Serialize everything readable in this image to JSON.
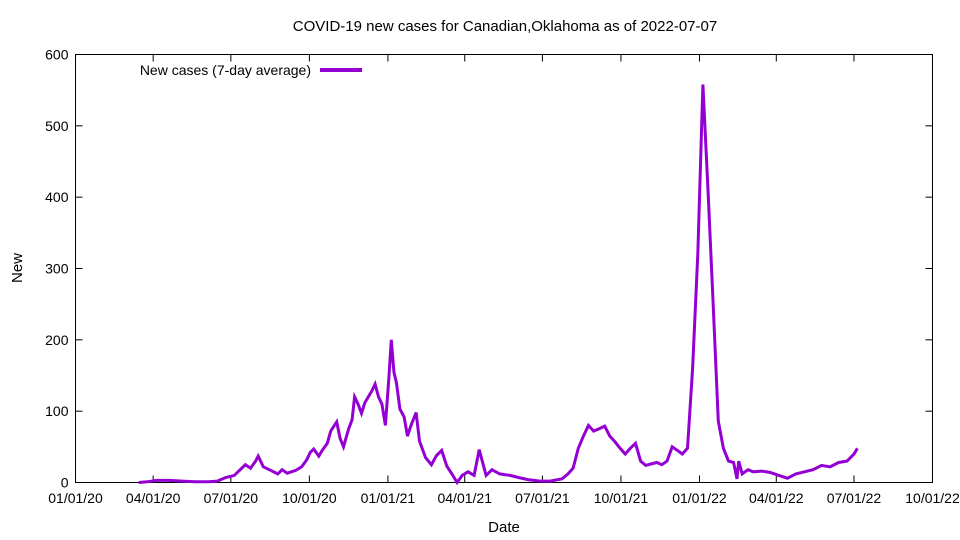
{
  "chart_data": {
    "type": "line",
    "title": "COVID-19 new cases for Canadian,Oklahoma as of 2022-07-07",
    "xlabel": "Date",
    "ylabel": "New",
    "x_range": [
      "2020-01-01",
      "2022-10-01"
    ],
    "ylim": [
      0,
      600
    ],
    "y_ticks": [
      0,
      100,
      200,
      300,
      400,
      500,
      600
    ],
    "x_ticks": [
      "2020-01-01",
      "2020-04-01",
      "2020-07-01",
      "2020-10-01",
      "2021-01-01",
      "2021-04-01",
      "2021-07-01",
      "2021-10-01",
      "2022-01-01",
      "2022-04-01",
      "2022-07-01",
      "2022-10-01"
    ],
    "x_tick_labels": [
      "01/01/20",
      "04/01/20",
      "07/01/20",
      "10/01/20",
      "01/01/21",
      "04/01/21",
      "07/01/21",
      "10/01/21",
      "01/01/22",
      "04/01/22",
      "07/01/22",
      "10/01/22"
    ],
    "grid": false,
    "legend_position": "top-left",
    "series": [
      {
        "name": "New cases (7-day average)",
        "color": "#9400d3",
        "points": [
          [
            "2020-03-15",
            0
          ],
          [
            "2020-03-25",
            1
          ],
          [
            "2020-04-05",
            3
          ],
          [
            "2020-04-20",
            3
          ],
          [
            "2020-05-05",
            2
          ],
          [
            "2020-05-20",
            1
          ],
          [
            "2020-06-05",
            1
          ],
          [
            "2020-06-15",
            2
          ],
          [
            "2020-06-25",
            7
          ],
          [
            "2020-07-05",
            10
          ],
          [
            "2020-07-12",
            18
          ],
          [
            "2020-07-18",
            25
          ],
          [
            "2020-07-24",
            20
          ],
          [
            "2020-07-30",
            30
          ],
          [
            "2020-08-02",
            37
          ],
          [
            "2020-08-08",
            22
          ],
          [
            "2020-08-15",
            18
          ],
          [
            "2020-08-25",
            12
          ],
          [
            "2020-08-30",
            18
          ],
          [
            "2020-09-05",
            13
          ],
          [
            "2020-09-15",
            17
          ],
          [
            "2020-09-22",
            22
          ],
          [
            "2020-09-28",
            32
          ],
          [
            "2020-10-02",
            42
          ],
          [
            "2020-10-06",
            47
          ],
          [
            "2020-10-12",
            37
          ],
          [
            "2020-10-16",
            45
          ],
          [
            "2020-10-22",
            55
          ],
          [
            "2020-10-26",
            72
          ],
          [
            "2020-11-02",
            85
          ],
          [
            "2020-11-06",
            62
          ],
          [
            "2020-11-10",
            50
          ],
          [
            "2020-11-16",
            75
          ],
          [
            "2020-11-20",
            88
          ],
          [
            "2020-11-23",
            120
          ],
          [
            "2020-11-27",
            110
          ],
          [
            "2020-12-01",
            97
          ],
          [
            "2020-12-05",
            112
          ],
          [
            "2020-12-09",
            120
          ],
          [
            "2020-12-13",
            128
          ],
          [
            "2020-12-17",
            138
          ],
          [
            "2020-12-21",
            120
          ],
          [
            "2020-12-25",
            110
          ],
          [
            "2020-12-29",
            80
          ],
          [
            "2021-01-02",
            145
          ],
          [
            "2021-01-05",
            200
          ],
          [
            "2021-01-08",
            155
          ],
          [
            "2021-01-11",
            140
          ],
          [
            "2021-01-15",
            103
          ],
          [
            "2021-01-20",
            92
          ],
          [
            "2021-01-24",
            65
          ],
          [
            "2021-01-28",
            80
          ],
          [
            "2021-02-03",
            98
          ],
          [
            "2021-02-07",
            58
          ],
          [
            "2021-02-14",
            35
          ],
          [
            "2021-02-21",
            25
          ],
          [
            "2021-02-27",
            38
          ],
          [
            "2021-03-05",
            45
          ],
          [
            "2021-03-11",
            23
          ],
          [
            "2021-03-17",
            12
          ],
          [
            "2021-03-23",
            0
          ],
          [
            "2021-03-29",
            10
          ],
          [
            "2021-04-05",
            15
          ],
          [
            "2021-04-12",
            10
          ],
          [
            "2021-04-18",
            46
          ],
          [
            "2021-04-26",
            10
          ],
          [
            "2021-05-03",
            18
          ],
          [
            "2021-05-12",
            12
          ],
          [
            "2021-05-24",
            10
          ],
          [
            "2021-06-03",
            7
          ],
          [
            "2021-06-14",
            4
          ],
          [
            "2021-06-28",
            2
          ],
          [
            "2021-07-10",
            2
          ],
          [
            "2021-07-24",
            5
          ],
          [
            "2021-07-31",
            12
          ],
          [
            "2021-08-06",
            20
          ],
          [
            "2021-08-12",
            48
          ],
          [
            "2021-08-18",
            65
          ],
          [
            "2021-08-24",
            80
          ],
          [
            "2021-08-30",
            72
          ],
          [
            "2021-09-05",
            75
          ],
          [
            "2021-09-12",
            79
          ],
          [
            "2021-09-18",
            65
          ],
          [
            "2021-09-24",
            57
          ],
          [
            "2021-09-30",
            48
          ],
          [
            "2021-10-06",
            40
          ],
          [
            "2021-10-12",
            48
          ],
          [
            "2021-10-18",
            55
          ],
          [
            "2021-10-24",
            30
          ],
          [
            "2021-10-30",
            24
          ],
          [
            "2021-11-05",
            26
          ],
          [
            "2021-11-12",
            28
          ],
          [
            "2021-11-18",
            25
          ],
          [
            "2021-11-24",
            30
          ],
          [
            "2021-11-30",
            50
          ],
          [
            "2021-12-06",
            45
          ],
          [
            "2021-12-12",
            40
          ],
          [
            "2021-12-18",
            48
          ],
          [
            "2021-12-24",
            160
          ],
          [
            "2021-12-30",
            320
          ],
          [
            "2022-01-05",
            558
          ],
          [
            "2022-01-11",
            410
          ],
          [
            "2022-01-17",
            252
          ],
          [
            "2022-01-23",
            86
          ],
          [
            "2022-01-29",
            48
          ],
          [
            "2022-02-04",
            30
          ],
          [
            "2022-02-10",
            28
          ],
          [
            "2022-02-14",
            5
          ],
          [
            "2022-02-16",
            30
          ],
          [
            "2022-02-20",
            12
          ],
          [
            "2022-02-27",
            18
          ],
          [
            "2022-03-05",
            15
          ],
          [
            "2022-03-15",
            16
          ],
          [
            "2022-03-25",
            14
          ],
          [
            "2022-04-04",
            10
          ],
          [
            "2022-04-14",
            6
          ],
          [
            "2022-04-24",
            12
          ],
          [
            "2022-05-04",
            15
          ],
          [
            "2022-05-14",
            18
          ],
          [
            "2022-05-24",
            24
          ],
          [
            "2022-06-03",
            22
          ],
          [
            "2022-06-13",
            28
          ],
          [
            "2022-06-23",
            30
          ],
          [
            "2022-07-01",
            40
          ],
          [
            "2022-07-05",
            48
          ]
        ]
      }
    ]
  }
}
